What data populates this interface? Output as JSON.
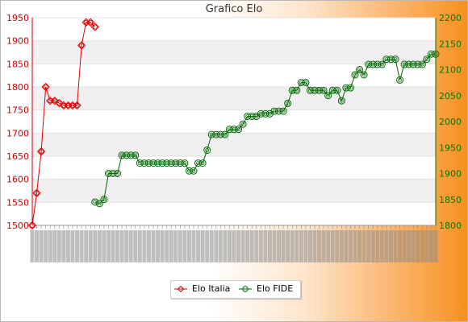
{
  "chart_data": {
    "type": "line",
    "title": "Grafico Elo",
    "left_axis": {
      "ylim": [
        1500,
        1950
      ],
      "ticks": [
        1500,
        1550,
        1600,
        1650,
        1700,
        1750,
        1800,
        1850,
        1900,
        1950
      ],
      "color": "#cc0000"
    },
    "right_axis": {
      "ylim": [
        1800,
        2200
      ],
      "ticks": [
        1800,
        1850,
        1900,
        1950,
        2000,
        2050,
        2100,
        2150,
        2200
      ],
      "color": "#007a00"
    },
    "x_count": 90,
    "grid": "horizontal bands",
    "legend_position": "bottom",
    "series": [
      {
        "name": "Elo Italia",
        "axis": "left",
        "color": "#e00000",
        "points": [
          [
            0,
            1500
          ],
          [
            1,
            1570
          ],
          [
            2,
            1660
          ],
          [
            3,
            1800
          ],
          [
            4,
            1770
          ],
          [
            5,
            1770
          ],
          [
            6,
            1765
          ],
          [
            7,
            1760
          ],
          [
            8,
            1760
          ],
          [
            9,
            1760
          ],
          [
            10,
            1760
          ],
          [
            11,
            1890
          ],
          [
            12,
            1940
          ],
          [
            13,
            1940
          ],
          [
            14,
            1930
          ]
        ]
      },
      {
        "name": "Elo FIDE",
        "axis": "right",
        "color": "#006600",
        "points": [
          [
            14,
            1845
          ],
          [
            15,
            1842
          ],
          [
            16,
            1850
          ],
          [
            17,
            1900
          ],
          [
            18,
            1900
          ],
          [
            19,
            1900
          ],
          [
            20,
            1935
          ],
          [
            21,
            1935
          ],
          [
            22,
            1935
          ],
          [
            23,
            1935
          ],
          [
            24,
            1920
          ],
          [
            25,
            1920
          ],
          [
            26,
            1920
          ],
          [
            27,
            1920
          ],
          [
            28,
            1920
          ],
          [
            29,
            1920
          ],
          [
            30,
            1920
          ],
          [
            31,
            1920
          ],
          [
            32,
            1920
          ],
          [
            33,
            1920
          ],
          [
            34,
            1920
          ],
          [
            35,
            1905
          ],
          [
            36,
            1905
          ],
          [
            37,
            1920
          ],
          [
            38,
            1920
          ],
          [
            39,
            1945
          ],
          [
            40,
            1975
          ],
          [
            41,
            1975
          ],
          [
            42,
            1975
          ],
          [
            43,
            1975
          ],
          [
            44,
            1985
          ],
          [
            45,
            1985
          ],
          [
            46,
            1985
          ],
          [
            47,
            1995
          ],
          [
            48,
            2010
          ],
          [
            49,
            2010
          ],
          [
            50,
            2010
          ],
          [
            51,
            2015
          ],
          [
            52,
            2015
          ],
          [
            53,
            2015
          ],
          [
            54,
            2020
          ],
          [
            55,
            2020
          ],
          [
            56,
            2020
          ],
          [
            57,
            2035
          ],
          [
            58,
            2060
          ],
          [
            59,
            2060
          ],
          [
            60,
            2075
          ],
          [
            61,
            2075
          ],
          [
            62,
            2060
          ],
          [
            63,
            2060
          ],
          [
            64,
            2060
          ],
          [
            65,
            2060
          ],
          [
            66,
            2050
          ],
          [
            67,
            2060
          ],
          [
            68,
            2060
          ],
          [
            69,
            2040
          ],
          [
            70,
            2065
          ],
          [
            71,
            2065
          ],
          [
            72,
            2090
          ],
          [
            73,
            2100
          ],
          [
            74,
            2090
          ],
          [
            75,
            2110
          ],
          [
            76,
            2110
          ],
          [
            77,
            2110
          ],
          [
            78,
            2110
          ],
          [
            79,
            2120
          ],
          [
            80,
            2120
          ],
          [
            81,
            2120
          ],
          [
            82,
            2080
          ],
          [
            83,
            2110
          ],
          [
            84,
            2110
          ],
          [
            85,
            2110
          ],
          [
            86,
            2110
          ],
          [
            87,
            2110
          ],
          [
            88,
            2120
          ],
          [
            89,
            2130
          ],
          [
            90,
            2130
          ]
        ]
      }
    ]
  }
}
